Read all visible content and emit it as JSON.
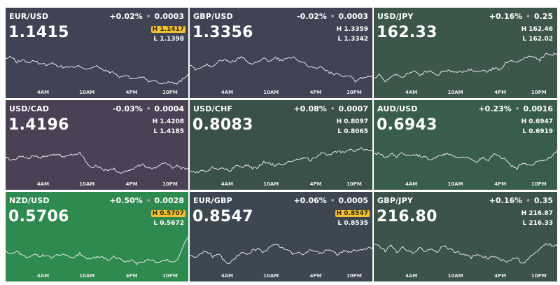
{
  "tiles": [
    {
      "pair": "EUR/USD",
      "change_pct": "+0.02%",
      "change_abs": "0.0003",
      "price": "1.1415",
      "high": "H 1.1417",
      "low": "L 1.1398",
      "high_flag": true,
      "bg": "#3f4354",
      "series": [
        0.66,
        0.7,
        0.58,
        0.63,
        0.57,
        0.6,
        0.55,
        0.52,
        0.56,
        0.5,
        0.46,
        0.47,
        0.45,
        0.49,
        0.42,
        0.45,
        0.48,
        0.39,
        0.36,
        0.32,
        0.22,
        0.27,
        0.19,
        0.21,
        0.24,
        0.12,
        0.16,
        0.08,
        0.1,
        0.13,
        0.06,
        0.18,
        0.3
      ]
    },
    {
      "pair": "GBP/USD",
      "change_pct": "-0.02%",
      "change_abs": "0.0003",
      "price": "1.3356",
      "high": "H 1.3359",
      "low": "L 1.3342",
      "high_flag": false,
      "bg": "#3f4354",
      "series": [
        0.5,
        0.42,
        0.45,
        0.52,
        0.48,
        0.6,
        0.64,
        0.56,
        0.62,
        0.7,
        0.61,
        0.5,
        0.62,
        0.66,
        0.58,
        0.68,
        0.62,
        0.66,
        0.71,
        0.58,
        0.56,
        0.48,
        0.42,
        0.46,
        0.36,
        0.31,
        0.28,
        0.22,
        0.26,
        0.14,
        0.2,
        0.24,
        0.26
      ]
    },
    {
      "pair": "USD/JPY",
      "change_pct": "+0.16%",
      "change_abs": "0.25",
      "price": "162.33",
      "high": "H 162.46",
      "low": "L 162.02",
      "high_flag": false,
      "bg": "#3c574a",
      "series": [
        0.2,
        0.28,
        0.14,
        0.24,
        0.3,
        0.22,
        0.34,
        0.36,
        0.28,
        0.34,
        0.38,
        0.26,
        0.36,
        0.4,
        0.32,
        0.34,
        0.38,
        0.4,
        0.34,
        0.38,
        0.36,
        0.44,
        0.4,
        0.55,
        0.6,
        0.56,
        0.64,
        0.72,
        0.68,
        0.62,
        0.8,
        0.76,
        0.78
      ]
    },
    {
      "pair": "USD/CAD",
      "change_pct": "-0.03%",
      "change_abs": "0.0004",
      "price": "1.4196",
      "high": "H 1.4208",
      "low": "L 1.4185",
      "high_flag": false,
      "bg": "#4b4054",
      "series": [
        0.5,
        0.44,
        0.48,
        0.54,
        0.5,
        0.52,
        0.5,
        0.54,
        0.56,
        0.58,
        0.52,
        0.55,
        0.56,
        0.63,
        0.4,
        0.28,
        0.3,
        0.22,
        0.2,
        0.24,
        0.12,
        0.16,
        0.2,
        0.3,
        0.34,
        0.26,
        0.24,
        0.3,
        0.38,
        0.26,
        0.3,
        0.24,
        0.22
      ]
    },
    {
      "pair": "USD/CHF",
      "change_pct": "+0.08%",
      "change_abs": "0.0007",
      "price": "0.8083",
      "high": "H 0.8097",
      "low": "L 0.8065",
      "high_flag": false,
      "bg": "#3a5148",
      "series": [
        0.2,
        0.14,
        0.18,
        0.16,
        0.28,
        0.2,
        0.24,
        0.18,
        0.3,
        0.26,
        0.32,
        0.24,
        0.28,
        0.4,
        0.36,
        0.3,
        0.34,
        0.38,
        0.4,
        0.46,
        0.5,
        0.44,
        0.48,
        0.62,
        0.56,
        0.6,
        0.66,
        0.62,
        0.7,
        0.64,
        0.72,
        0.68,
        0.66
      ]
    },
    {
      "pair": "AUD/USD",
      "change_pct": "+0.23%",
      "change_abs": "0.0016",
      "price": "0.6943",
      "high": "H 0.6947",
      "low": "L 0.6919",
      "high_flag": false,
      "bg": "#385e4b",
      "series": [
        0.56,
        0.62,
        0.5,
        0.6,
        0.52,
        0.62,
        0.56,
        0.58,
        0.54,
        0.5,
        0.46,
        0.5,
        0.56,
        0.6,
        0.54,
        0.48,
        0.52,
        0.46,
        0.4,
        0.5,
        0.44,
        0.58,
        0.5,
        0.48,
        0.3,
        0.24,
        0.4,
        0.3,
        0.36,
        0.42,
        0.46,
        0.52,
        0.68
      ]
    },
    {
      "pair": "NZD/USD",
      "change_pct": "+0.50%",
      "change_abs": "0.0028",
      "price": "0.5706",
      "high": "H 0.5707",
      "low": "L 0.5672",
      "high_flag": true,
      "bg": "#2f8a50",
      "series": [
        0.46,
        0.38,
        0.44,
        0.36,
        0.32,
        0.38,
        0.34,
        0.36,
        0.3,
        0.4,
        0.36,
        0.34,
        0.32,
        0.4,
        0.3,
        0.28,
        0.32,
        0.3,
        0.24,
        0.32,
        0.28,
        0.2,
        0.24,
        0.16,
        0.2,
        0.26,
        0.22,
        0.18,
        0.24,
        0.22,
        0.24,
        0.54,
        0.8
      ]
    },
    {
      "pair": "EUR/GBP",
      "change_pct": "+0.06%",
      "change_abs": "0.0005",
      "price": "0.8547",
      "high": "H 0.8547",
      "low": "L 0.8535",
      "high_flag": true,
      "bg": "#3c4752",
      "series": [
        0.34,
        0.3,
        0.42,
        0.46,
        0.32,
        0.4,
        0.22,
        0.16,
        0.3,
        0.42,
        0.36,
        0.48,
        0.5,
        0.42,
        0.56,
        0.64,
        0.54,
        0.48,
        0.4,
        0.44,
        0.36,
        0.5,
        0.46,
        0.4,
        0.48,
        0.44,
        0.38,
        0.46,
        0.42,
        0.48,
        0.5,
        0.52,
        0.54
      ]
    },
    {
      "pair": "GBP/JPY",
      "change_pct": "+0.16%",
      "change_abs": "0.35",
      "price": "216.80",
      "high": "H 216.87",
      "low": "L 216.33",
      "high_flag": false,
      "bg": "#3b5348",
      "series": [
        0.64,
        0.58,
        0.46,
        0.62,
        0.44,
        0.54,
        0.48,
        0.4,
        0.56,
        0.44,
        0.5,
        0.42,
        0.6,
        0.52,
        0.46,
        0.42,
        0.36,
        0.3,
        0.4,
        0.34,
        0.28,
        0.32,
        0.26,
        0.2,
        0.26,
        0.3,
        0.16,
        0.28,
        0.4,
        0.5,
        0.64,
        0.6,
        0.58
      ]
    }
  ],
  "time_axis": [
    "4AM",
    "10AM",
    "4PM",
    "10PM"
  ]
}
